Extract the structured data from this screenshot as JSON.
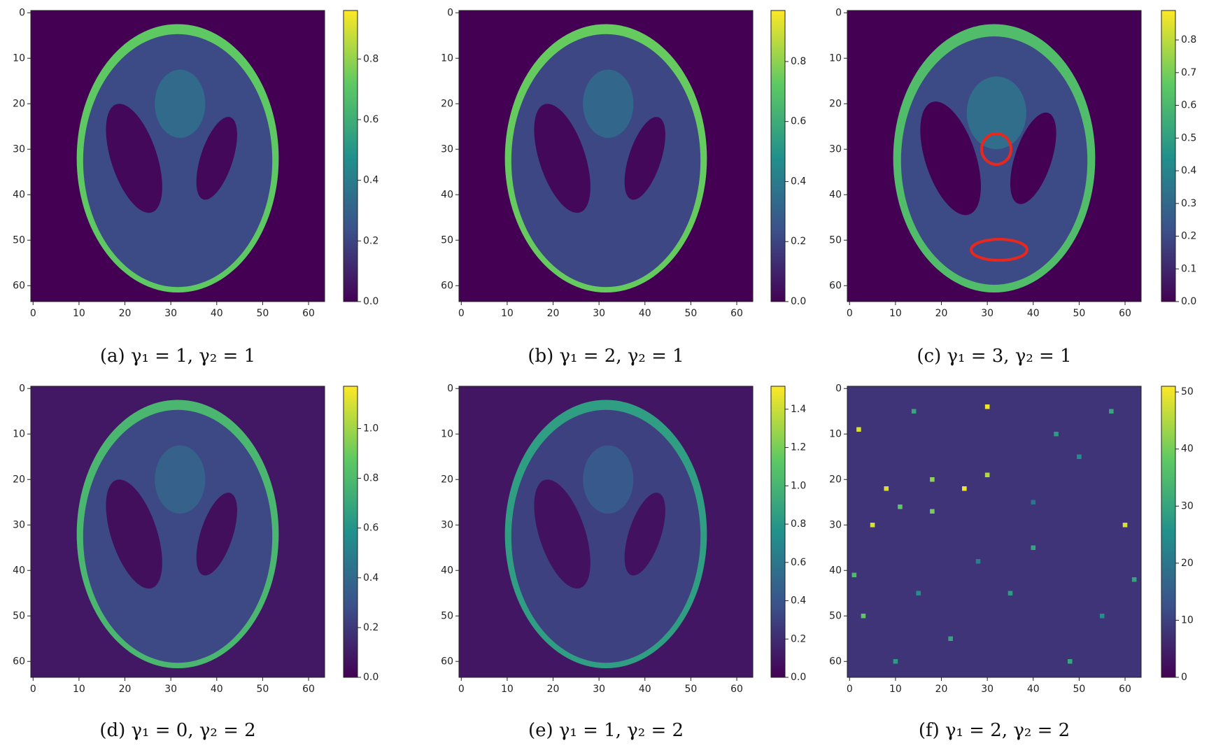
{
  "chart_data": [
    {
      "type": "heatmap",
      "caption": "(a) γ₁ = 1, γ₂ = 1",
      "colormap": "viridis",
      "xlim": [
        -0.5,
        63.5
      ],
      "ylim": [
        63.5,
        -0.5
      ],
      "xticks": [
        0,
        10,
        20,
        30,
        40,
        50,
        60
      ],
      "yticks": [
        0,
        10,
        20,
        30,
        40,
        50,
        60
      ],
      "clim": [
        0,
        0.96
      ],
      "cticks": [
        {
          "value": 0,
          "label": "0.0"
        },
        0.2,
        0.4,
        0.6,
        0.8
      ],
      "background": 0.0,
      "ellipses": [
        {
          "cx": 31.5,
          "cy": 32,
          "rx": 22,
          "ry": 29.5,
          "angle": 0,
          "value": 0.72
        },
        {
          "cx": 31.5,
          "cy": 32.5,
          "rx": 20.6,
          "ry": 27.8,
          "angle": 0,
          "value": 0.22
        },
        {
          "cx": 32,
          "cy": 20,
          "rx": 5.5,
          "ry": 7.5,
          "angle": 0,
          "value": 0.33
        },
        {
          "cx": 22,
          "cy": 32,
          "rx": 5,
          "ry": 12.5,
          "angle": -18,
          "value": 0.02
        },
        {
          "cx": 40,
          "cy": 32,
          "rx": 3.5,
          "ry": 9.5,
          "angle": 18,
          "value": 0.02
        }
      ]
    },
    {
      "type": "heatmap",
      "caption": "(b) γ₁ = 2, γ₂ = 1",
      "colormap": "viridis",
      "xlim": [
        -0.5,
        63.5
      ],
      "ylim": [
        63.5,
        -0.5
      ],
      "xticks": [
        0,
        10,
        20,
        30,
        40,
        50,
        60
      ],
      "yticks": [
        0,
        10,
        20,
        30,
        40,
        50,
        60
      ],
      "clim": [
        0,
        0.97
      ],
      "cticks": [
        {
          "value": 0,
          "label": "0.0"
        },
        0.2,
        0.4,
        0.6,
        0.8
      ],
      "background": 0.0,
      "ellipses": [
        {
          "cx": 31.5,
          "cy": 32,
          "rx": 22,
          "ry": 29.5,
          "angle": 0,
          "value": 0.74
        },
        {
          "cx": 31.5,
          "cy": 32.5,
          "rx": 20.6,
          "ry": 27.8,
          "angle": 0,
          "value": 0.21
        },
        {
          "cx": 32,
          "cy": 20,
          "rx": 5.5,
          "ry": 7.5,
          "angle": 0,
          "value": 0.32
        },
        {
          "cx": 22,
          "cy": 32,
          "rx": 5,
          "ry": 12.5,
          "angle": -18,
          "value": 0.02
        },
        {
          "cx": 40,
          "cy": 32,
          "rx": 3.5,
          "ry": 9.5,
          "angle": 18,
          "value": 0.02
        }
      ]
    },
    {
      "type": "heatmap",
      "caption": "(c) γ₁ = 3, γ₂ = 1",
      "colormap": "viridis",
      "xlim": [
        -0.5,
        63.5
      ],
      "ylim": [
        63.5,
        -0.5
      ],
      "xticks": [
        0,
        10,
        20,
        30,
        40,
        50,
        60
      ],
      "yticks": [
        0,
        10,
        20,
        30,
        40,
        50,
        60
      ],
      "clim": [
        0,
        0.89
      ],
      "cticks": [
        {
          "value": 0,
          "label": "0.0"
        },
        0.1,
        0.2,
        0.3,
        0.4,
        0.5,
        0.6,
        0.7,
        0.8
      ],
      "background": 0.0,
      "ellipses": [
        {
          "cx": 31.5,
          "cy": 32,
          "rx": 22,
          "ry": 29.5,
          "angle": 0,
          "value": 0.62
        },
        {
          "cx": 31.5,
          "cy": 32.5,
          "rx": 20.3,
          "ry": 27.3,
          "angle": 0,
          "value": 0.2
        },
        {
          "cx": 32,
          "cy": 22,
          "rx": 6.5,
          "ry": 8,
          "angle": 0,
          "value": 0.32
        },
        {
          "cx": 22,
          "cy": 32,
          "rx": 5.5,
          "ry": 13,
          "angle": -18,
          "value": 0.0
        },
        {
          "cx": 40,
          "cy": 32,
          "rx": 4,
          "ry": 10.5,
          "angle": 18,
          "value": 0.0
        }
      ]
    },
    {
      "type": "heatmap",
      "caption": "(d) γ₁ = 0, γ₂ = 2",
      "colormap": "viridis",
      "xlim": [
        -0.5,
        63.5
      ],
      "ylim": [
        63.5,
        -0.5
      ],
      "xticks": [
        0,
        10,
        20,
        30,
        40,
        50,
        60
      ],
      "yticks": [
        0,
        10,
        20,
        30,
        40,
        50,
        60
      ],
      "clim": [
        0,
        1.17
      ],
      "cticks": [
        {
          "value": 0,
          "label": "0.0"
        },
        0.2,
        0.4,
        0.6,
        0.8,
        {
          "value": 1,
          "label": "1.0"
        }
      ],
      "background": 0.08,
      "ellipses": [
        {
          "cx": 31.5,
          "cy": 32,
          "rx": 22,
          "ry": 29.5,
          "angle": 0,
          "value": 0.78
        },
        {
          "cx": 31.5,
          "cy": 32.5,
          "rx": 20.6,
          "ry": 27.8,
          "angle": 0,
          "value": 0.26
        },
        {
          "cx": 32,
          "cy": 20,
          "rx": 5.5,
          "ry": 7.5,
          "angle": 0,
          "value": 0.36
        },
        {
          "cx": 22,
          "cy": 32,
          "rx": 5,
          "ry": 12.5,
          "angle": -18,
          "value": 0.05
        },
        {
          "cx": 40,
          "cy": 32,
          "rx": 3.5,
          "ry": 9.5,
          "angle": 18,
          "value": 0.05
        }
      ]
    },
    {
      "type": "heatmap",
      "caption": "(e) γ₁ = 1, γ₂ = 2",
      "colormap": "viridis",
      "xlim": [
        -0.5,
        63.5
      ],
      "ylim": [
        63.5,
        -0.5
      ],
      "xticks": [
        0,
        10,
        20,
        30,
        40,
        50,
        60
      ],
      "yticks": [
        0,
        10,
        20,
        30,
        40,
        50,
        60
      ],
      "clim": [
        0,
        1.52
      ],
      "cticks": [
        {
          "value": 0,
          "label": "0.0"
        },
        0.2,
        0.4,
        0.6,
        0.8,
        {
          "value": 1,
          "label": "1.0"
        },
        1.2,
        1.4
      ],
      "background": 0.1,
      "ellipses": [
        {
          "cx": 31.5,
          "cy": 32,
          "rx": 22,
          "ry": 29.5,
          "angle": 0,
          "value": 0.85
        },
        {
          "cx": 31.5,
          "cy": 32.5,
          "rx": 20.6,
          "ry": 27.8,
          "angle": 0,
          "value": 0.3
        },
        {
          "cx": 32,
          "cy": 20,
          "rx": 5.5,
          "ry": 7.5,
          "angle": 0,
          "value": 0.42
        },
        {
          "cx": 22,
          "cy": 32,
          "rx": 5,
          "ry": 12.5,
          "angle": -18,
          "value": 0.08
        },
        {
          "cx": 40,
          "cy": 32,
          "rx": 3.5,
          "ry": 9.5,
          "angle": 18,
          "value": 0.08
        }
      ]
    },
    {
      "type": "heatmap",
      "caption": "(f) γ₁ = 2, γ₂ = 2",
      "colormap": "viridis",
      "xlim": [
        -0.5,
        63.5
      ],
      "ylim": [
        63.5,
        -0.5
      ],
      "xticks": [
        0,
        10,
        20,
        30,
        40,
        50,
        60
      ],
      "yticks": [
        0,
        10,
        20,
        30,
        40,
        50,
        60
      ],
      "clim": [
        0,
        51
      ],
      "cticks": [
        0,
        10,
        20,
        30,
        40,
        50
      ],
      "background": 8,
      "pixels": [
        [
          30,
          4,
          50
        ],
        [
          2,
          9,
          48
        ],
        [
          8,
          22,
          48
        ],
        [
          25,
          22,
          50
        ],
        [
          30,
          19,
          45
        ],
        [
          18,
          20,
          42
        ],
        [
          11,
          26,
          38
        ],
        [
          5,
          30,
          48
        ],
        [
          60,
          30,
          48
        ],
        [
          18,
          27,
          40
        ],
        [
          1,
          41,
          35
        ],
        [
          3,
          50,
          38
        ],
        [
          14,
          5,
          30
        ],
        [
          45,
          10,
          28
        ],
        [
          50,
          15,
          25
        ],
        [
          40,
          35,
          30
        ],
        [
          35,
          45,
          28
        ],
        [
          22,
          55,
          30
        ],
        [
          55,
          50,
          25
        ],
        [
          10,
          60,
          28
        ],
        [
          48,
          60,
          30
        ],
        [
          28,
          38,
          22
        ],
        [
          62,
          42,
          30
        ],
        [
          40,
          25,
          20
        ],
        [
          15,
          45,
          25
        ],
        [
          57,
          5,
          30
        ]
      ]
    }
  ]
}
